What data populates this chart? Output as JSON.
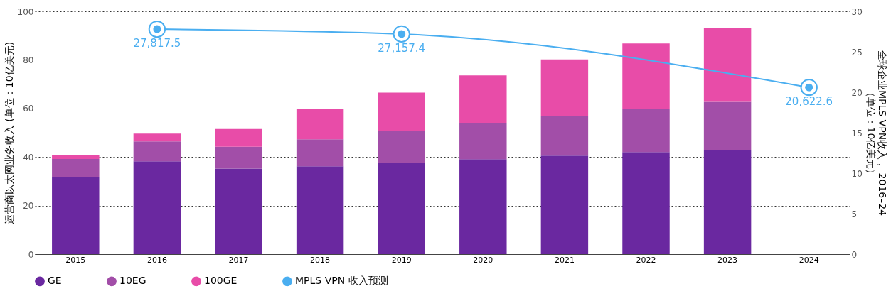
{
  "chart_data": {
    "type": "bar",
    "stacked": true,
    "categories": [
      "2015",
      "2016",
      "2017",
      "2018",
      "2019",
      "2020",
      "2021",
      "2022",
      "2023",
      "2024"
    ],
    "ylabel": "运营商以太网业务收入 (单位：10亿美元)",
    "y2label": "全球企业MPLS VPN收入， 2016–24\n（单位：10亿美元）",
    "ylim": [
      0,
      100
    ],
    "yticks": [
      0,
      20,
      40,
      60,
      80,
      100
    ],
    "y2lim": [
      0,
      30
    ],
    "y2ticks": [
      0,
      5,
      10,
      15,
      20,
      25,
      30
    ],
    "annotations": [
      "27,817.5",
      "27,157.4",
      "20,622.6"
    ],
    "grid": "y",
    "legend": "bottom",
    "series": [
      {
        "name": "GE",
        "color": "#6a28a0",
        "values": [
          31.8,
          38.2,
          35.2,
          36.2,
          37.6,
          39.1,
          40.6,
          42.0,
          42.8,
          null
        ]
      },
      {
        "name": "10EG",
        "color": "#a24ea8",
        "values": [
          7.4,
          8.2,
          9.0,
          11.1,
          13.0,
          14.8,
          16.3,
          17.8,
          19.9,
          null
        ]
      },
      {
        "name": "100GE",
        "color": "#e84ca8",
        "values": [
          1.7,
          3.2,
          7.3,
          12.6,
          15.9,
          19.7,
          23.3,
          27.0,
          30.6,
          null
        ]
      },
      {
        "name": "MPLS VPN  收入预测",
        "color": "#4aaef0",
        "type": "line",
        "axis": "y2",
        "marker": "circle",
        "values": [
          null,
          27.8,
          null,
          null,
          27.2,
          null,
          null,
          null,
          null,
          20.6
        ]
      }
    ]
  }
}
